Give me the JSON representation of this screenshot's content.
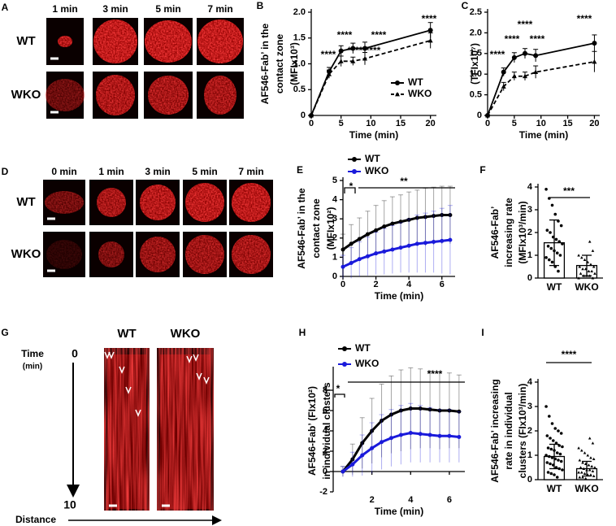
{
  "image_panels": [
    {
      "panel": "A",
      "columns": [
        "1 min",
        "3 min",
        "5 min",
        "7 min"
      ],
      "rows": [
        "WT",
        "WKO"
      ]
    },
    {
      "panel": "D",
      "columns": [
        "0 min",
        "1 min",
        "3 min",
        "5 min",
        "7 min"
      ],
      "rows": [
        "WT",
        "WKO"
      ]
    }
  ],
  "kymograph": {
    "panel": "G",
    "time_label": "Time",
    "time_start": "0",
    "time_unit": "(min)",
    "time_end": "10",
    "distance_label": "Distance",
    "columns": [
      "WT",
      "WKO"
    ]
  },
  "chart_data": [
    {
      "type": "line",
      "panel": "B",
      "ylabel": [
        "AF546-Fab’ in the",
        "contact zone",
        "(MFIx10³)"
      ],
      "xlabel": "Time (min)",
      "x": [
        0,
        3,
        5,
        7,
        9,
        20
      ],
      "xlim": [
        0,
        21
      ],
      "xticks": [
        0,
        5,
        10,
        15,
        20
      ],
      "ylim": [
        0,
        2
      ],
      "yticks": [
        0,
        0.5,
        {
          "value": 1,
          "label": "1.0"
        },
        1.5,
        {
          "value": 2,
          "label": "2.0"
        }
      ],
      "legend": "lower right",
      "series": [
        {
          "name": "WT",
          "color": "#000000",
          "linestyle": "solid",
          "marker": "circle",
          "values": [
            0,
            0.85,
            1.25,
            1.3,
            1.3,
            1.65
          ],
          "errors": [
            0,
            0.08,
            0.1,
            0.1,
            0.12,
            0.15
          ]
        },
        {
          "name": "WKO",
          "color": "#000000",
          "linestyle": "dashed",
          "marker": "triangle",
          "values": [
            0,
            0.8,
            1.05,
            1.05,
            1.1,
            1.45
          ],
          "errors": [
            0,
            0.08,
            0.1,
            0.08,
            0.12,
            0.15
          ]
        }
      ],
      "annotations": [
        "****",
        "****",
        "****",
        "****",
        "****",
        "****"
      ]
    },
    {
      "type": "line",
      "panel": "C",
      "ylabel": [
        "(TFIx10⁷)"
      ],
      "xlabel": "Time (min)",
      "x": [
        0,
        3,
        5,
        7,
        9,
        20
      ],
      "xlim": [
        0,
        21
      ],
      "xticks": [
        0,
        5,
        10,
        15,
        20
      ],
      "ylim": [
        0,
        2.5
      ],
      "yticks": [
        0,
        0.5,
        {
          "value": 1,
          "label": "1.0"
        },
        1.5,
        {
          "value": 2,
          "label": "2.0"
        },
        2.5
      ],
      "series": [
        {
          "name": "WT",
          "color": "#000000",
          "linestyle": "solid",
          "marker": "circle",
          "values": [
            0,
            1.05,
            1.4,
            1.5,
            1.45,
            1.75
          ],
          "errors": [
            0,
            0.1,
            0.12,
            0.12,
            0.15,
            0.2
          ]
        },
        {
          "name": "WKO",
          "color": "#000000",
          "linestyle": "dashed",
          "marker": "triangle",
          "values": [
            0,
            0.7,
            0.95,
            0.95,
            1.05,
            1.3
          ],
          "errors": [
            0,
            0.1,
            0.1,
            0.1,
            0.15,
            0.25
          ]
        }
      ],
      "annotations": [
        "****",
        "****",
        "****",
        "****",
        "****"
      ]
    },
    {
      "type": "line",
      "panel": "E",
      "ylabel": [
        "AF546-Fab’ in the",
        "contact zone",
        "(MFIx10²)"
      ],
      "xlabel": "Time (min)",
      "x": [
        0,
        0.5,
        1,
        1.5,
        2,
        2.5,
        3,
        3.5,
        4,
        4.5,
        5,
        5.5,
        6,
        6.5
      ],
      "xlim": [
        0,
        6.8
      ],
      "xticks": [
        0,
        2,
        4,
        6
      ],
      "ylim": [
        0,
        5
      ],
      "yticks": [
        0,
        1,
        2,
        3,
        4,
        5
      ],
      "legend": "top",
      "series": [
        {
          "name": "WT",
          "color": "#000000",
          "linestyle": "solid",
          "marker": "circle",
          "values": [
            1.4,
            1.7,
            1.95,
            2.2,
            2.4,
            2.6,
            2.75,
            2.85,
            2.95,
            3.05,
            3.1,
            3.15,
            3.2,
            3.2
          ],
          "errors": [
            0.8,
            1.0,
            1.1,
            1.2,
            1.3,
            1.35,
            1.4,
            1.4,
            1.45,
            1.45,
            1.5,
            1.5,
            1.5,
            1.5
          ]
        },
        {
          "name": "WKO",
          "color": "#1a1adb",
          "linestyle": "solid",
          "marker": "circle",
          "values": [
            0.5,
            0.7,
            0.9,
            1.05,
            1.2,
            1.3,
            1.4,
            1.5,
            1.6,
            1.7,
            1.75,
            1.8,
            1.85,
            1.9
          ],
          "errors": [
            0.6,
            0.8,
            0.9,
            1.0,
            1.1,
            1.2,
            1.25,
            1.3,
            1.4,
            1.5,
            1.55,
            1.6,
            1.7,
            1.8
          ]
        }
      ],
      "annotations": [
        "*",
        "**"
      ]
    },
    {
      "type": "bar",
      "panel": "F",
      "ylabel": [
        "AF546-Fab’",
        "increasing rate",
        "(MFIx10³/min)"
      ],
      "categories": [
        "WT",
        "WKO"
      ],
      "values": [
        1.55,
        0.55
      ],
      "errors": [
        1.0,
        0.45
      ],
      "markers": [
        "circle",
        "triangle"
      ],
      "points": [
        [
          3.9,
          3.5,
          3.2,
          2.8,
          2.5,
          2.3,
          2.1,
          2.0,
          1.8,
          1.7,
          1.6,
          1.5,
          1.4,
          1.3,
          1.2,
          1.1,
          1.0,
          0.9,
          0.8,
          0.7,
          0.5,
          0.3
        ],
        [
          1.6,
          1.2,
          1.0,
          0.9,
          0.8,
          0.7,
          0.6,
          0.5,
          0.5,
          0.4,
          0.4,
          0.3,
          0.3,
          0.2,
          0.2,
          0.1,
          0.1,
          0.1,
          0,
          0
        ]
      ],
      "ylim": [
        0,
        4
      ],
      "yticks": [
        0,
        1,
        2,
        3,
        4
      ],
      "annotations": [
        "***"
      ]
    },
    {
      "type": "line",
      "panel": "H",
      "ylabel": [
        "AF546-Fab’ (FIx10²)",
        "in individual clusters"
      ],
      "xlabel": "Time (min)",
      "x": [
        0.5,
        1,
        1.5,
        2,
        2.5,
        3,
        3.5,
        4,
        4.5,
        5,
        5.5,
        6,
        6.5
      ],
      "xlim": [
        0,
        6.8
      ],
      "xticks": [
        2,
        4,
        6
      ],
      "ylim": [
        -2,
        10
      ],
      "yticks": [
        -2,
        0,
        2,
        4,
        6,
        8
      ],
      "legend": "top",
      "series": [
        {
          "name": "WT",
          "color": "#000000",
          "linestyle": "solid",
          "marker": "circle",
          "values": [
            0,
            1.2,
            2.8,
            4.0,
            5.0,
            5.6,
            6.0,
            6.2,
            6.2,
            6.1,
            6.0,
            6.0,
            5.9
          ],
          "errors": [
            0.5,
            1.5,
            2.5,
            3.2,
            3.6,
            3.8,
            4.0,
            4.0,
            3.9,
            3.8,
            3.8,
            3.7,
            3.6
          ]
        },
        {
          "name": "WKO",
          "color": "#1a1adb",
          "linestyle": "solid",
          "marker": "circle",
          "values": [
            0,
            0.7,
            1.6,
            2.3,
            2.9,
            3.3,
            3.6,
            3.8,
            3.7,
            3.6,
            3.5,
            3.5,
            3.4
          ],
          "errors": [
            0.5,
            1.2,
            2.0,
            2.5,
            2.7,
            2.8,
            2.9,
            2.9,
            2.8,
            2.7,
            2.6,
            2.6,
            2.5
          ]
        }
      ],
      "annotations": [
        "*",
        "****"
      ]
    },
    {
      "type": "bar",
      "panel": "I",
      "ylabel": [
        "AF546-Fab’ increasing",
        "rate in individual",
        "clusters (FIx10³/min)"
      ],
      "categories": [
        "WT",
        "WKO"
      ],
      "values": [
        0.95,
        0.45
      ],
      "errors": [
        0.5,
        0.3
      ],
      "markers": [
        "circle",
        "triangle"
      ],
      "points": [
        [
          3.0,
          2.6,
          2.3,
          2.1,
          2.0,
          1.9,
          1.8,
          1.7,
          1.6,
          1.5,
          1.4,
          1.35,
          1.3,
          1.25,
          1.2,
          1.1,
          1.05,
          1.0,
          0.95,
          0.9,
          0.85,
          0.8,
          0.75,
          0.7,
          0.65,
          0.6,
          0.5,
          0.45,
          0.4,
          0.3,
          0.25,
          0.2,
          0.1
        ],
        [
          1.7,
          1.5,
          1.3,
          1.2,
          1.1,
          1.0,
          0.9,
          0.85,
          0.8,
          0.7,
          0.65,
          0.6,
          0.55,
          0.5,
          0.5,
          0.45,
          0.4,
          0.4,
          0.35,
          0.3,
          0.3,
          0.25,
          0.2,
          0.2,
          0.15,
          0.1,
          0.1,
          0.05
        ]
      ],
      "ylim": [
        0,
        4
      ],
      "yticks": [
        0,
        1,
        2,
        3,
        4
      ],
      "annotations": [
        "****"
      ]
    }
  ]
}
